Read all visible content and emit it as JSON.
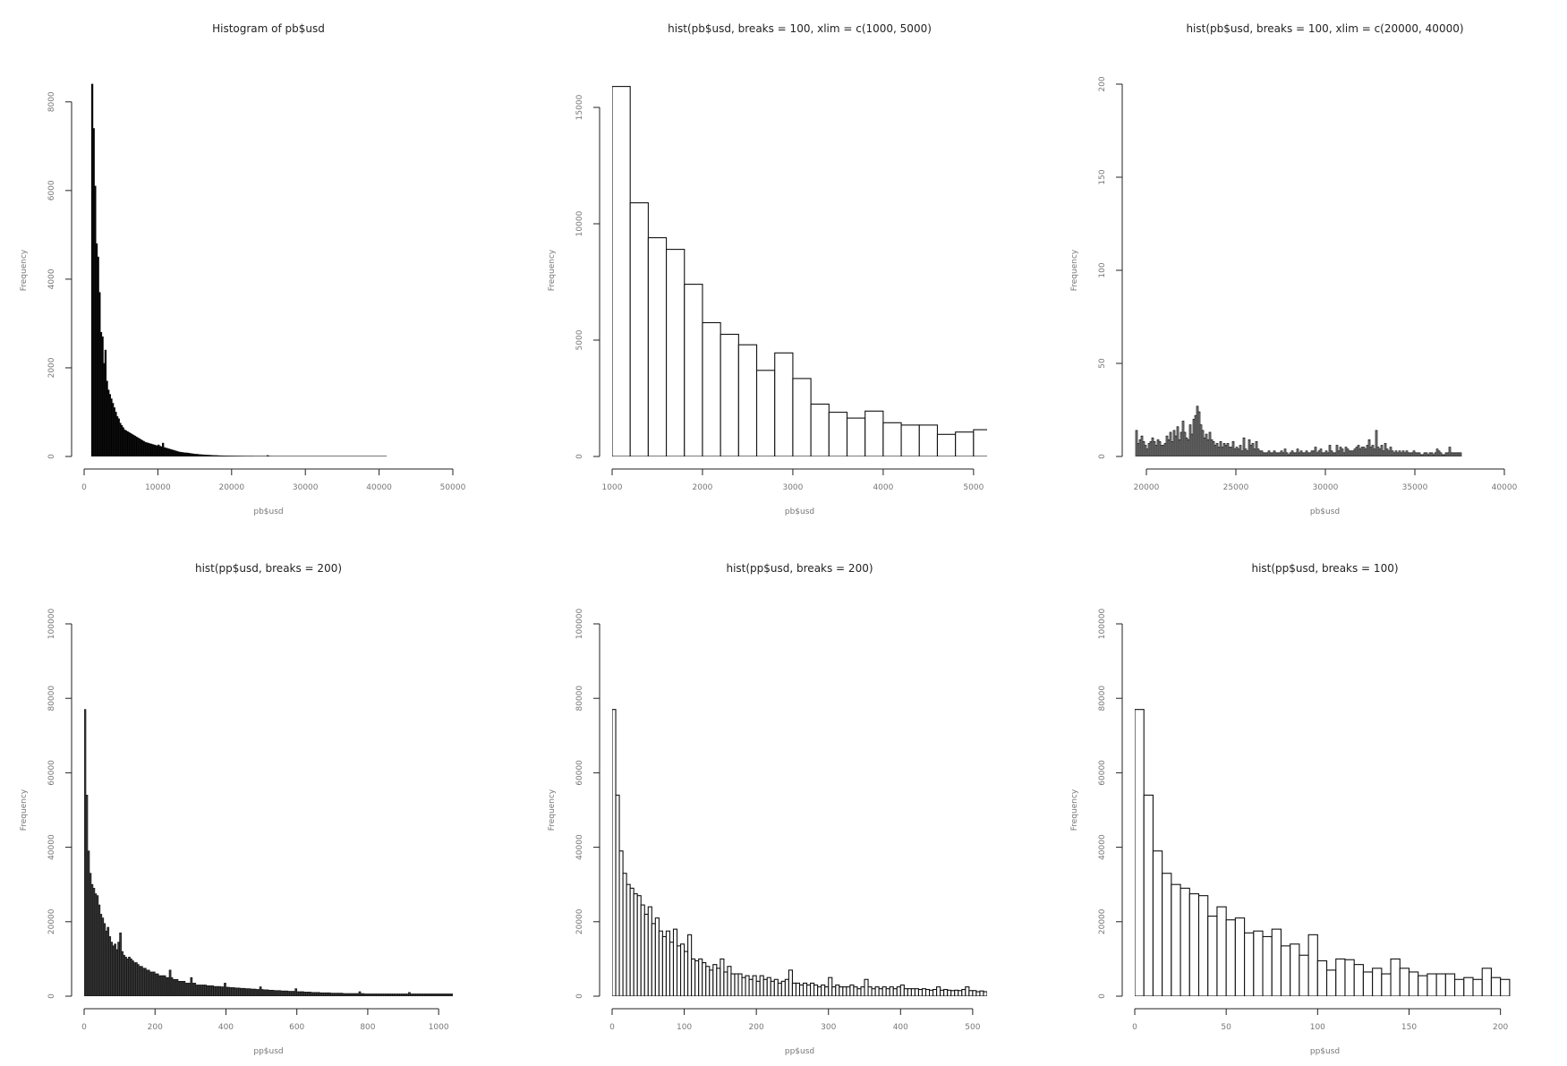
{
  "chart_data": [
    {
      "type": "bar",
      "title": "Histogram of pb$usd",
      "xlabel": "pb$usd",
      "ylabel": "Frequency",
      "xlim": [
        0,
        50000
      ],
      "ylim": [
        0,
        8400
      ],
      "xticks": [
        0,
        10000,
        20000,
        30000,
        40000,
        50000
      ],
      "xtick_labels": [
        "0",
        "10000",
        "20000",
        "30000",
        "40000",
        "50000"
      ],
      "yticks": [
        0,
        2000,
        4000,
        6000,
        8000
      ],
      "ytick_labels": [
        "0",
        "2000",
        "4000",
        "6000",
        "8000"
      ],
      "bar_fill": "#000000",
      "bins": {
        "start": 1000,
        "width": 200
      },
      "values": [
        8400,
        7400,
        6100,
        4800,
        4500,
        3700,
        2800,
        2700,
        2100,
        2400,
        1700,
        1500,
        1400,
        1300,
        1200,
        1100,
        1000,
        900,
        850,
        750,
        700,
        650,
        600,
        580,
        560,
        540,
        520,
        500,
        480,
        460,
        440,
        420,
        400,
        380,
        360,
        340,
        320,
        310,
        300,
        290,
        280,
        270,
        260,
        250,
        240,
        260,
        230,
        220,
        300,
        200,
        190,
        180,
        170,
        160,
        150,
        140,
        130,
        120,
        110,
        100,
        95,
        90,
        85,
        80,
        80,
        75,
        70,
        65,
        60,
        55,
        50,
        50,
        45,
        40,
        40,
        35,
        35,
        30,
        30,
        28,
        26,
        24,
        22,
        20,
        20,
        18,
        16,
        15,
        14,
        13,
        12,
        12,
        11,
        10,
        10,
        10,
        9,
        9,
        8,
        8,
        8,
        7,
        7,
        7,
        6,
        6,
        6,
        6,
        6,
        6,
        5,
        5,
        5,
        5,
        5,
        5,
        5,
        5,
        5,
        20,
        5,
        5,
        4,
        4,
        4,
        4,
        4,
        4,
        4,
        4,
        4,
        4,
        4,
        4,
        4,
        4,
        4,
        4,
        4,
        4,
        4,
        4,
        4,
        4,
        4,
        4,
        4,
        4,
        4,
        4,
        4,
        4,
        4,
        4,
        4,
        4,
        4,
        4,
        4,
        4,
        4,
        4,
        4,
        4,
        4,
        4,
        4,
        4,
        4,
        4,
        4,
        4,
        4,
        4,
        4,
        4,
        4,
        4,
        4,
        4,
        4,
        4,
        4,
        4,
        4,
        4,
        4,
        4,
        4,
        4,
        4,
        4,
        4,
        4,
        4,
        4,
        4,
        4,
        4,
        4
      ]
    },
    {
      "type": "bar",
      "title": "hist(pb$usd, breaks = 100, xlim = c(1000, 5000)",
      "xlabel": "pb$usd",
      "ylabel": "Frequency",
      "xlim": [
        1000,
        5150
      ],
      "ylim": [
        0,
        16000
      ],
      "xticks": [
        1000,
        2000,
        3000,
        4000,
        5000
      ],
      "xtick_labels": [
        "1000",
        "2000",
        "3000",
        "4000",
        "5000"
      ],
      "yticks": [
        0,
        5000,
        10000,
        15000
      ],
      "ytick_labels": [
        "0",
        "5000",
        "10000",
        "15000"
      ],
      "bar_fill": "#ffffff",
      "bins": {
        "start": 1000,
        "width": 200
      },
      "values": [
        15900,
        10900,
        9400,
        8900,
        7400,
        5750,
        5250,
        4800,
        3700,
        4450,
        3350,
        2250,
        1900,
        1650,
        1950,
        1450,
        1350,
        1350,
        950,
        1050,
        1150
      ]
    },
    {
      "type": "bar",
      "title": "hist(pb$usd, breaks = 100, xlim = c(20000, 40000)",
      "xlabel": "pb$usd",
      "ylabel": "Frequency",
      "xlim": [
        19350,
        40600
      ],
      "ylim": [
        0,
        200
      ],
      "xticks": [
        20000,
        25000,
        30000,
        35000,
        40000
      ],
      "xtick_labels": [
        "20000",
        "25000",
        "30000",
        "35000",
        "40000"
      ],
      "yticks": [
        0,
        50,
        100,
        150,
        200
      ],
      "ytick_labels": [
        "0",
        "50",
        "100",
        "150",
        "200"
      ],
      "bar_fill": "#888888",
      "bins": {
        "start": 19400,
        "width": 100
      },
      "values": [
        14,
        7,
        9,
        11,
        8,
        6,
        4,
        7,
        8,
        10,
        8,
        6,
        9,
        8,
        6,
        6,
        7,
        11,
        9,
        13,
        8,
        14,
        11,
        16,
        9,
        13,
        19,
        13,
        10,
        9,
        17,
        12,
        20,
        22,
        27,
        24,
        17,
        14,
        10,
        12,
        9,
        13,
        9,
        8,
        6,
        7,
        5,
        8,
        5,
        7,
        6,
        7,
        5,
        5,
        8,
        4,
        5,
        4,
        6,
        3,
        10,
        4,
        3,
        9,
        6,
        7,
        4,
        8,
        4,
        3,
        3,
        2,
        2,
        2,
        3,
        2,
        2,
        3,
        2,
        2,
        2,
        3,
        2,
        4,
        2,
        1,
        2,
        3,
        2,
        2,
        4,
        2,
        3,
        2,
        2,
        3,
        2,
        2,
        3,
        3,
        5,
        2,
        3,
        4,
        2,
        2,
        3,
        2,
        6,
        3,
        2,
        2,
        6,
        3,
        5,
        4,
        2,
        5,
        4,
        3,
        3,
        3,
        4,
        5,
        6,
        4,
        5,
        5,
        4,
        6,
        9,
        5,
        6,
        4,
        14,
        5,
        4,
        6,
        3,
        7,
        4,
        3,
        5,
        3,
        2,
        3,
        2,
        3,
        2,
        3,
        2,
        3,
        2,
        2,
        2,
        3,
        2,
        2,
        2,
        1,
        1,
        2,
        2,
        1,
        2,
        2,
        1,
        2,
        4,
        3,
        2,
        1,
        1,
        2,
        2,
        5,
        2,
        2,
        2,
        2,
        2,
        2
      ]
    },
    {
      "type": "bar",
      "title": "hist(pp$usd, breaks = 200)",
      "xlabel": "pp$usd",
      "ylabel": "Frequency",
      "xlim": [
        0,
        1040
      ],
      "ylim": [
        0,
        100000
      ],
      "xticks": [
        0,
        200,
        400,
        600,
        800,
        1000
      ],
      "xtick_labels": [
        "0",
        "200",
        "400",
        "600",
        "800",
        "1000"
      ],
      "yticks": [
        0,
        20000,
        40000,
        60000,
        80000,
        100000
      ],
      "ytick_labels": [
        "0",
        "20000",
        "40000",
        "60000",
        "80000",
        "100000"
      ],
      "bar_fill": "#3a3a3a",
      "bins": {
        "start": 0,
        "width": 5
      },
      "values": [
        77000,
        54000,
        39000,
        33000,
        30000,
        29000,
        27500,
        27000,
        24500,
        22000,
        21000,
        19500,
        17500,
        18500,
        16000,
        14500,
        13500,
        14000,
        12500,
        14500,
        17000,
        12000,
        11000,
        10500,
        10000,
        10500,
        10000,
        9500,
        9000,
        9000,
        8500,
        8000,
        8000,
        7500,
        7500,
        7000,
        7000,
        6500,
        6500,
        6500,
        6000,
        6000,
        5500,
        5500,
        5500,
        5500,
        5000,
        5000,
        7000,
        5000,
        4500,
        4500,
        4500,
        4000,
        4000,
        4000,
        4000,
        3500,
        3500,
        3500,
        5000,
        3500,
        3500,
        3000,
        3000,
        3000,
        3000,
        3000,
        3000,
        2800,
        2800,
        2800,
        2800,
        2600,
        2600,
        2600,
        2600,
        2500,
        2500,
        3500,
        2400,
        2400,
        2300,
        2300,
        2300,
        2200,
        2200,
        2200,
        2100,
        2100,
        2100,
        2000,
        2000,
        2000,
        1900,
        1900,
        1900,
        1800,
        1800,
        2500,
        1800,
        1700,
        1700,
        1700,
        1600,
        1600,
        1600,
        1500,
        1500,
        1500,
        1500,
        1400,
        1400,
        1400,
        1400,
        1300,
        1300,
        1300,
        1300,
        2000,
        1200,
        1200,
        1200,
        1200,
        1100,
        1100,
        1100,
        1100,
        1000,
        1000,
        1000,
        1000,
        1000,
        900,
        900,
        900,
        900,
        900,
        900,
        800,
        800,
        800,
        800,
        800,
        800,
        800,
        700,
        700,
        700,
        700,
        700,
        700,
        700,
        700,
        700,
        1200,
        700,
        700,
        600,
        600,
        600,
        600,
        600,
        600,
        600,
        600,
        600,
        600,
        600,
        600,
        600,
        600,
        600,
        600,
        600,
        600,
        600,
        600,
        600,
        600,
        600,
        600,
        600,
        1000,
        600,
        600,
        600,
        600,
        600,
        600,
        600,
        600,
        600,
        600,
        600,
        600,
        600,
        600,
        600,
        600,
        600,
        600,
        600,
        600,
        600,
        600,
        600,
        600,
        600,
        1000,
        600,
        600,
        600,
        600,
        600,
        600,
        600,
        600
      ]
    },
    {
      "type": "bar",
      "title": "hist(pp$usd, breaks = 200)",
      "xlabel": "pp$usd",
      "ylabel": "Frequency",
      "xlim": [
        0,
        520
      ],
      "ylim": [
        0,
        100000
      ],
      "xticks": [
        0,
        100,
        200,
        300,
        400,
        500
      ],
      "xtick_labels": [
        "0",
        "100",
        "200",
        "300",
        "400",
        "500"
      ],
      "yticks": [
        0,
        20000,
        40000,
        60000,
        80000,
        100000
      ],
      "ytick_labels": [
        "0",
        "20000",
        "40000",
        "60000",
        "80000",
        "100000"
      ],
      "bar_fill": "#ffffff",
      "bins": {
        "start": 0,
        "width": 5
      },
      "values": [
        77000,
        54000,
        39000,
        33000,
        30000,
        29000,
        27500,
        27000,
        24500,
        22000,
        24000,
        19500,
        21000,
        17500,
        16000,
        17500,
        14500,
        18000,
        13500,
        14000,
        12000,
        16500,
        10000,
        9500,
        10000,
        9000,
        8000,
        7000,
        8500,
        7500,
        10000,
        6500,
        8000,
        6000,
        6000,
        6000,
        5000,
        5500,
        4500,
        5500,
        4000,
        5500,
        4500,
        5000,
        4000,
        4500,
        3500,
        4000,
        4500,
        7000,
        3500,
        3500,
        3000,
        3500,
        3000,
        3500,
        3000,
        2500,
        3000,
        2500,
        5000,
        2500,
        3000,
        2500,
        2500,
        2500,
        3000,
        2500,
        2000,
        2500,
        4500,
        2500,
        2000,
        2500,
        2000,
        2500,
        2000,
        2500,
        2000,
        2500,
        3000,
        2000,
        2000,
        2000,
        2000,
        1800,
        2000,
        1800,
        1600,
        1800,
        2500,
        1600,
        1800,
        1600,
        1500,
        1600,
        1500,
        1800,
        2500,
        1500,
        1500,
        1200,
        1400,
        1200
      ]
    },
    {
      "type": "bar",
      "title": "hist(pp$usd, breaks = 100)",
      "xlabel": "pp$usd",
      "ylabel": "Frequency",
      "xlim": [
        0,
        208
      ],
      "ylim": [
        0,
        100000
      ],
      "xticks": [
        0,
        50,
        100,
        150,
        200
      ],
      "xtick_labels": [
        "0",
        "50",
        "100",
        "150",
        "200"
      ],
      "yticks": [
        0,
        20000,
        40000,
        60000,
        80000,
        100000
      ],
      "ytick_labels": [
        "0",
        "20000",
        "40000",
        "60000",
        "80000",
        "100000"
      ],
      "bar_fill": "#ffffff",
      "bins": {
        "start": 0,
        "width": 5
      },
      "values": [
        77000,
        54000,
        39000,
        33000,
        30000,
        29000,
        27500,
        27000,
        21500,
        24000,
        20500,
        21000,
        17000,
        17500,
        16000,
        18000,
        13500,
        14000,
        11000,
        16500,
        9500,
        7000,
        10000,
        9800,
        8500,
        6500,
        7500,
        6000,
        10000,
        7500,
        6500,
        5500,
        6000,
        6000,
        6000,
        4500,
        5000,
        4500,
        7500,
        5000,
        4500
      ]
    }
  ]
}
